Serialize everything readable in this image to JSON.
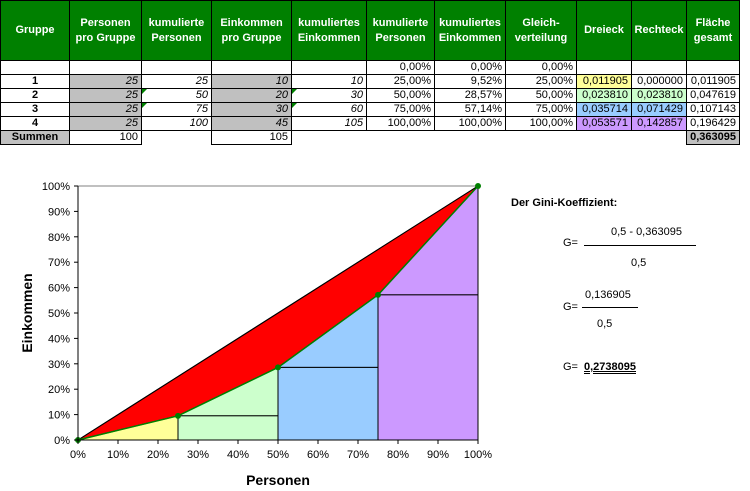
{
  "table": {
    "headers": [
      "Gruppe",
      "Personen pro Gruppe",
      "kumulierte Personen",
      "Einkommen pro Gruppe",
      "kumuliertes Einkommen",
      "kumulierte Personen",
      "kumuliertes Einkommen",
      "Gleich-verteilung",
      "Dreieck",
      "Rechteck",
      "Fläche gesamt"
    ],
    "zero_row": {
      "kum_personen": "0,00%",
      "kum_einkommen": "0,00%",
      "gleich": "0,00%"
    },
    "rows": [
      {
        "gruppe": "1",
        "personen": "25",
        "kum_p": "25",
        "einkommen": "10",
        "kum_e": "10",
        "kum_p_pct": "25,00%",
        "kum_e_pct": "9,52%",
        "gleich": "25,00%",
        "dreieck": "0,011905",
        "rechteck": "0,000000",
        "flaeche": "0,011905"
      },
      {
        "gruppe": "2",
        "personen": "25",
        "kum_p": "50",
        "einkommen": "20",
        "kum_e": "30",
        "kum_p_pct": "50,00%",
        "kum_e_pct": "28,57%",
        "gleich": "50,00%",
        "dreieck": "0,023810",
        "rechteck": "0,023810",
        "flaeche": "0,047619"
      },
      {
        "gruppe": "3",
        "personen": "25",
        "kum_p": "75",
        "einkommen": "30",
        "kum_e": "60",
        "kum_p_pct": "75,00%",
        "kum_e_pct": "57,14%",
        "gleich": "75,00%",
        "dreieck": "0,035714",
        "rechteck": "0,071429",
        "flaeche": "0,107143"
      },
      {
        "gruppe": "4",
        "personen": "25",
        "kum_p": "100",
        "einkommen": "45",
        "kum_e": "105",
        "kum_p_pct": "100,00%",
        "kum_e_pct": "100,00%",
        "gleich": "100,00%",
        "dreieck": "0,053571",
        "rechteck": "0,142857",
        "flaeche": "0,196429"
      }
    ],
    "sum_row": {
      "label": "Summen",
      "personen": "100",
      "einkommen": "105",
      "total": "0,363095"
    }
  },
  "formula": {
    "title": "Der Gini-Koeffizient:",
    "g1_prefix": "G=",
    "g1_num": "0,5 -  0,363095",
    "g1_den": "0,5",
    "g2_prefix": "G=",
    "g2_num": "0,136905",
    "g2_den": "0,5",
    "g3_prefix": "G=",
    "g3_value": "0,2738095"
  },
  "colors": {
    "header_green": "#008000",
    "inequality_red": "#ff0000",
    "yellow": "#ffff99",
    "light_green": "#ccffcc",
    "blue": "#99ccff",
    "purple": "#cc99ff",
    "marker_green": "#008000"
  },
  "chart_data": {
    "type": "area",
    "title": "",
    "xlabel": "Personen",
    "ylabel": "Einkommen",
    "xlim": [
      0,
      100
    ],
    "ylim": [
      0,
      100
    ],
    "x_ticks": [
      "0%",
      "10%",
      "20%",
      "30%",
      "40%",
      "50%",
      "60%",
      "70%",
      "80%",
      "90%",
      "100%"
    ],
    "y_ticks": [
      "0%",
      "10%",
      "20%",
      "30%",
      "40%",
      "50%",
      "60%",
      "70%",
      "80%",
      "90%",
      "100%"
    ],
    "series": [
      {
        "x": [
          0,
          100
        ],
        "y": [
          0,
          100
        ],
        "fill": "#ff0000"
      },
      {
        "x": [
          0,
          25,
          50,
          75,
          100
        ],
        "y": [
          0,
          9.52,
          28.57,
          57.14,
          100
        ],
        "fill": "none"
      }
    ],
    "segments": [
      {
        "x0": 0,
        "x1": 25,
        "y0": 0,
        "y1": 9.52,
        "color": "#ffff99"
      },
      {
        "x0": 25,
        "x1": 50,
        "y0": 9.52,
        "y1": 28.57,
        "color": "#ccffcc"
      },
      {
        "x0": 50,
        "x1": 75,
        "y0": 28.57,
        "y1": 57.14,
        "color": "#99ccff"
      },
      {
        "x0": 75,
        "x1": 100,
        "y0": 57.14,
        "y1": 100,
        "color": "#cc99ff"
      }
    ],
    "grid": false,
    "legend": "none"
  }
}
